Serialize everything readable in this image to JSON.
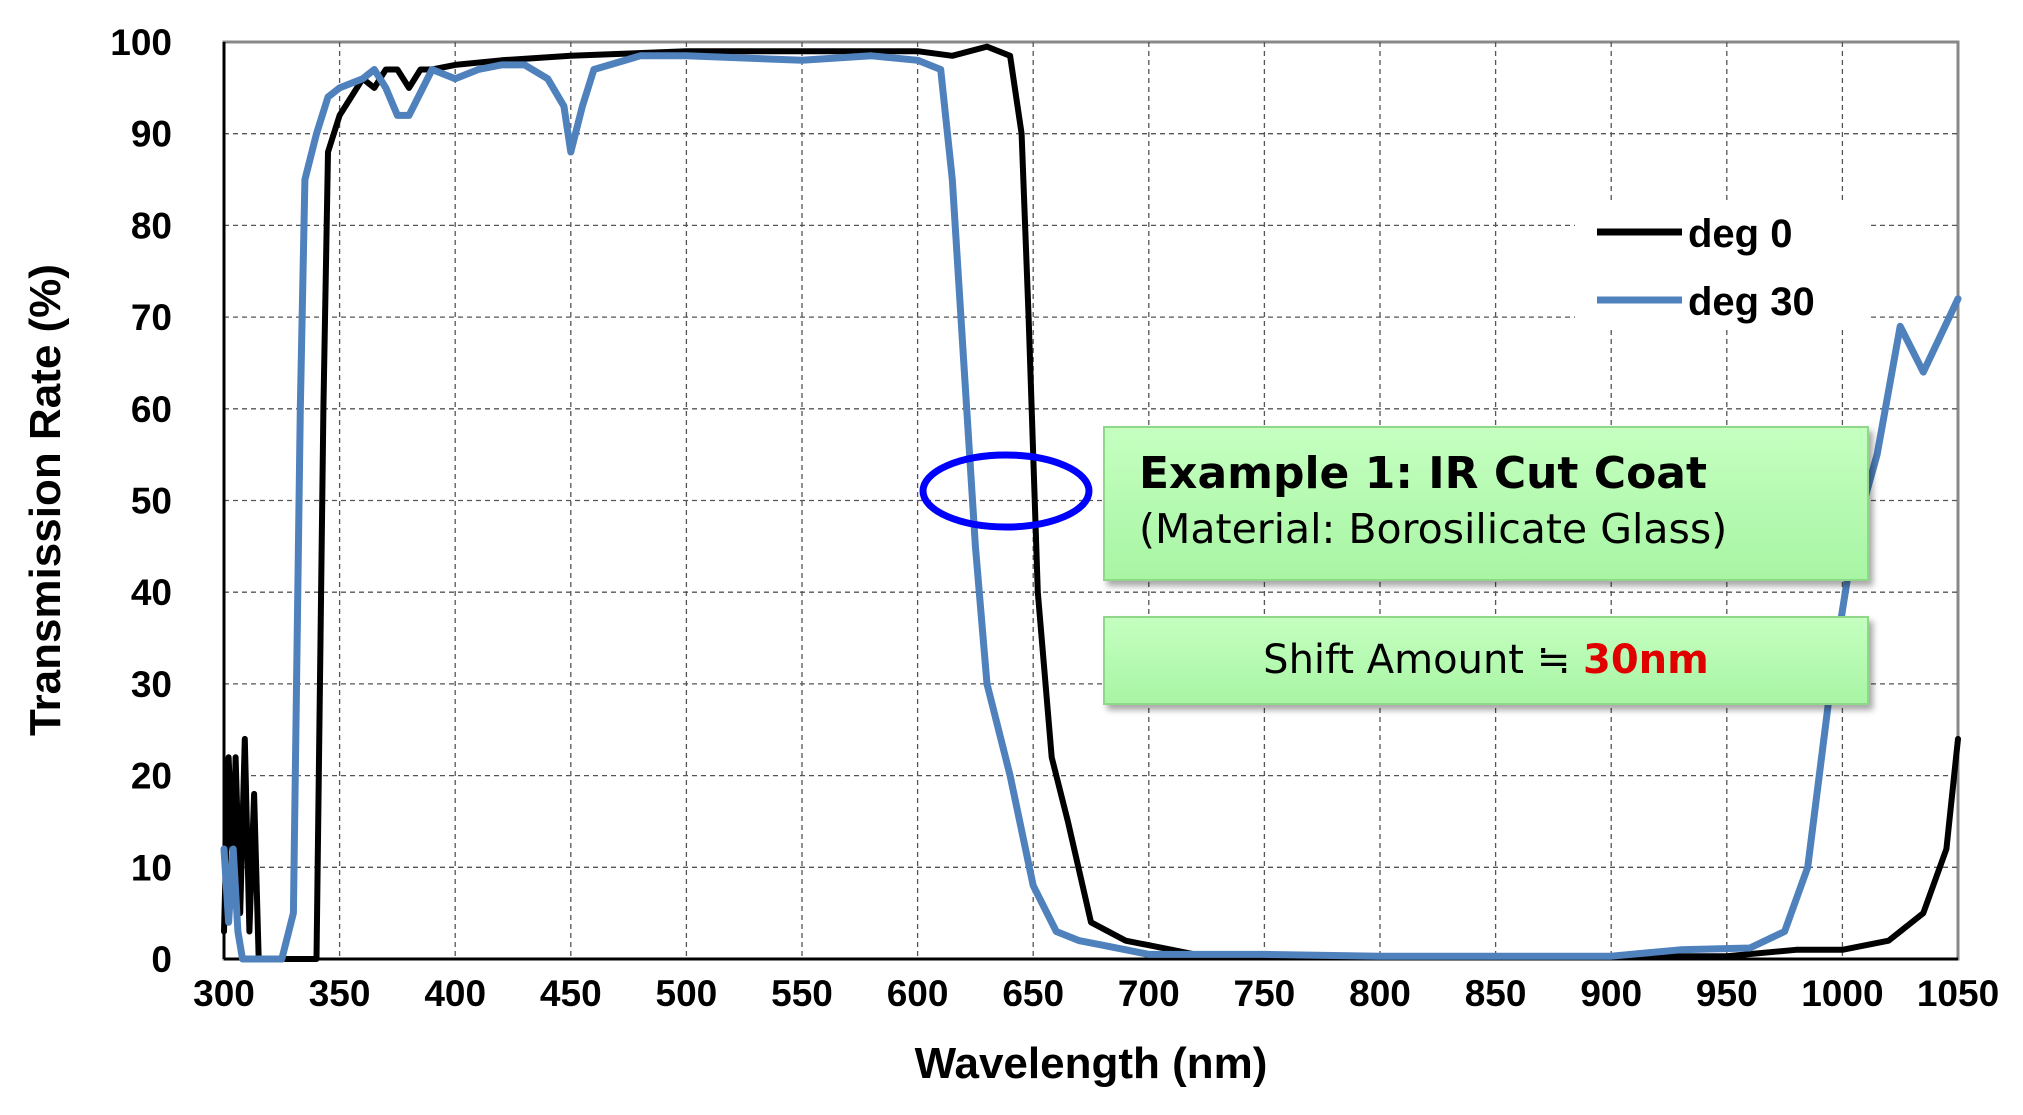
{
  "chart_data": {
    "type": "line",
    "title": "",
    "xlabel": "Wavelength (nm)",
    "ylabel": "Transmission Rate (%)",
    "xlim": [
      300,
      1050
    ],
    "ylim": [
      0,
      100
    ],
    "xticks": [
      "300",
      "350",
      "400",
      "450",
      "500",
      "550",
      "600",
      "650",
      "700",
      "750",
      "800",
      "850",
      "900",
      "950",
      "1000",
      "1050"
    ],
    "yticks": [
      "0",
      "10",
      "20",
      "30",
      "40",
      "50",
      "60",
      "70",
      "80",
      "90",
      "100"
    ],
    "grid": true,
    "legend_position": "top-right",
    "series": [
      {
        "name": "deg 0",
        "color": "#000000",
        "points": [
          [
            300,
            3
          ],
          [
            302,
            22
          ],
          [
            304,
            10
          ],
          [
            305,
            22
          ],
          [
            307,
            5
          ],
          [
            309,
            24
          ],
          [
            311,
            3
          ],
          [
            313,
            18
          ],
          [
            315,
            0
          ],
          [
            340,
            0
          ],
          [
            343,
            60
          ],
          [
            345,
            88
          ],
          [
            350,
            92
          ],
          [
            355,
            94
          ],
          [
            360,
            96
          ],
          [
            365,
            95
          ],
          [
            370,
            97
          ],
          [
            375,
            97
          ],
          [
            380,
            95
          ],
          [
            385,
            97
          ],
          [
            390,
            97
          ],
          [
            400,
            97.5
          ],
          [
            420,
            98
          ],
          [
            450,
            98.5
          ],
          [
            500,
            99
          ],
          [
            550,
            99
          ],
          [
            600,
            99
          ],
          [
            615,
            98.5
          ],
          [
            630,
            99.5
          ],
          [
            640,
            98.5
          ],
          [
            645,
            90
          ],
          [
            648,
            70
          ],
          [
            652,
            40
          ],
          [
            658,
            22
          ],
          [
            665,
            15
          ],
          [
            675,
            4
          ],
          [
            690,
            2
          ],
          [
            700,
            1.5
          ],
          [
            720,
            0.5
          ],
          [
            800,
            0.3
          ],
          [
            950,
            0.3
          ],
          [
            980,
            1
          ],
          [
            1000,
            1
          ],
          [
            1020,
            2
          ],
          [
            1035,
            5
          ],
          [
            1045,
            12
          ],
          [
            1050,
            24
          ]
        ]
      },
      {
        "name": "deg 30",
        "color": "#4f81bd",
        "points": [
          [
            300,
            12
          ],
          [
            302,
            4
          ],
          [
            304,
            12
          ],
          [
            306,
            3
          ],
          [
            308,
            0
          ],
          [
            325,
            0
          ],
          [
            330,
            5
          ],
          [
            333,
            60
          ],
          [
            335,
            85
          ],
          [
            340,
            90
          ],
          [
            345,
            94
          ],
          [
            350,
            95
          ],
          [
            360,
            96
          ],
          [
            365,
            97
          ],
          [
            370,
            95
          ],
          [
            375,
            92
          ],
          [
            380,
            92
          ],
          [
            390,
            97
          ],
          [
            400,
            96
          ],
          [
            410,
            97
          ],
          [
            420,
            97.5
          ],
          [
            430,
            97.5
          ],
          [
            440,
            96
          ],
          [
            447,
            93
          ],
          [
            450,
            88
          ],
          [
            455,
            93
          ],
          [
            460,
            97
          ],
          [
            480,
            98.5
          ],
          [
            500,
            98.5
          ],
          [
            550,
            98
          ],
          [
            580,
            98.5
          ],
          [
            600,
            98
          ],
          [
            610,
            97
          ],
          [
            615,
            85
          ],
          [
            620,
            65
          ],
          [
            625,
            45
          ],
          [
            630,
            30
          ],
          [
            640,
            20
          ],
          [
            650,
            8
          ],
          [
            660,
            3
          ],
          [
            670,
            2
          ],
          [
            680,
            1.5
          ],
          [
            700,
            0.5
          ],
          [
            750,
            0.5
          ],
          [
            800,
            0.3
          ],
          [
            900,
            0.3
          ],
          [
            930,
            1
          ],
          [
            960,
            1.2
          ],
          [
            975,
            3
          ],
          [
            985,
            10
          ],
          [
            995,
            30
          ],
          [
            1005,
            46
          ],
          [
            1015,
            55
          ],
          [
            1025,
            69
          ],
          [
            1035,
            64
          ],
          [
            1050,
            72
          ]
        ]
      }
    ],
    "annotations": {
      "box1_title": "Example 1: IR Cut Coat",
      "box1_subtitle": "(Material: Borosilicate Glass)",
      "box2_label": "Shift Amount ≒ ",
      "box2_value": "30nm",
      "highlight_ellipse": {
        "x": 637,
        "y": 50,
        "color": "#0000ff"
      }
    }
  }
}
